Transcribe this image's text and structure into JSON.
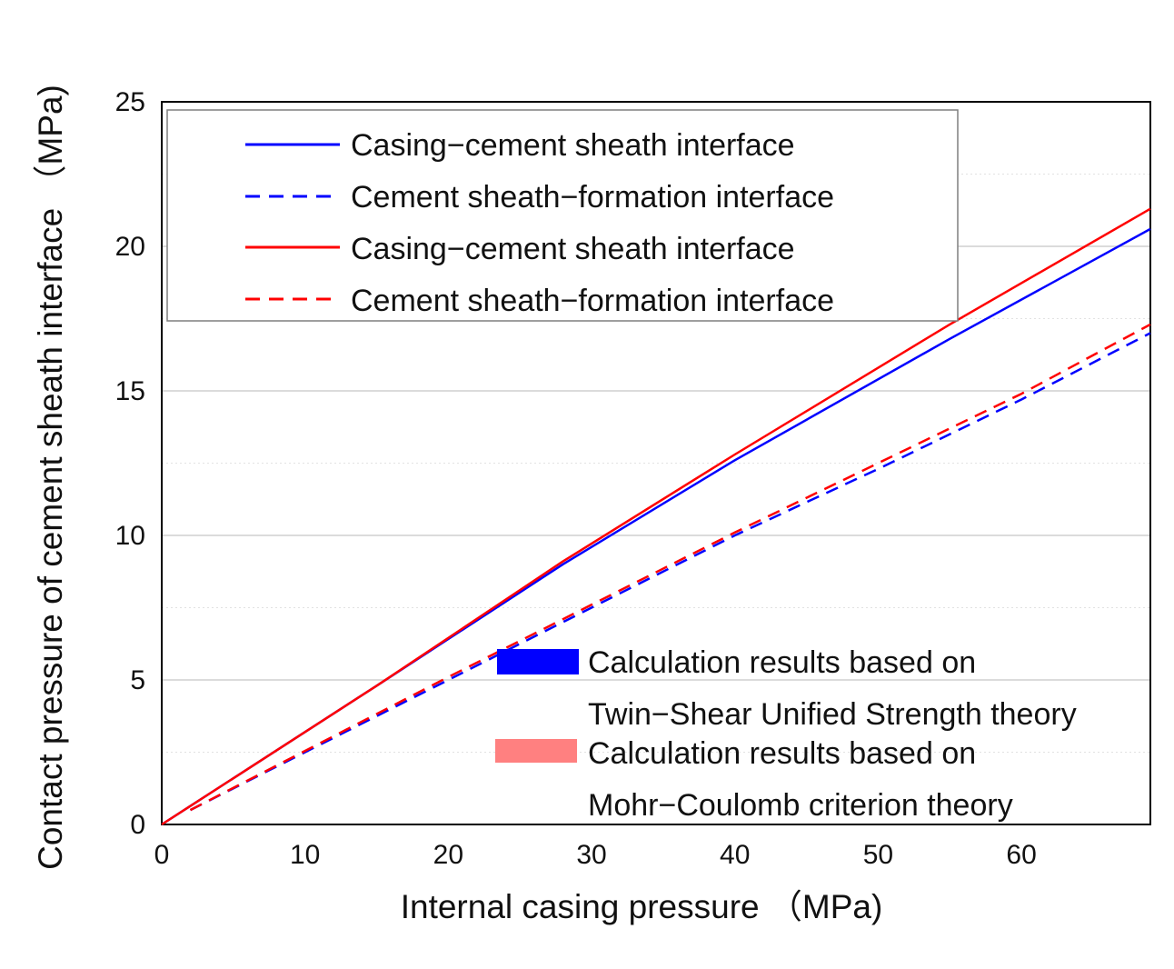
{
  "chart_data": {
    "type": "line",
    "title": "",
    "xlabel": "Internal casing pressure （MPa)",
    "ylabel": "Contact pressure of cement sheath interface （MPa)",
    "xlim": [
      0,
      69
    ],
    "ylim": [
      0,
      25
    ],
    "xticks": [
      0,
      10,
      20,
      30,
      40,
      50,
      60
    ],
    "yticks": [
      0,
      5,
      10,
      15,
      20,
      25
    ],
    "grid": true,
    "series": [
      {
        "name": "Casing−cement sheath interface",
        "group": "Twin-Shear Unified Strength theory",
        "color": "#0000ff",
        "dash": "solid",
        "x": [
          0,
          15,
          28,
          40,
          55,
          69
        ],
        "y": [
          0,
          4.8,
          9.0,
          12.6,
          16.8,
          20.6
        ]
      },
      {
        "name": "Cement sheath−formation interface",
        "group": "Twin-Shear Unified Strength theory",
        "color": "#0000ff",
        "dash": "dashed",
        "x": [
          2,
          20,
          30,
          40,
          50,
          60,
          69
        ],
        "y": [
          0.5,
          5.0,
          7.5,
          10.0,
          12.3,
          14.7,
          17.0
        ]
      },
      {
        "name": "Casing−cement sheath interface",
        "group": "Mohr-Coulomb criterion theory",
        "color": "#ff0000",
        "dash": "solid",
        "x": [
          0,
          15,
          28,
          40,
          55,
          69
        ],
        "y": [
          0,
          4.8,
          9.1,
          12.8,
          17.3,
          21.3
        ]
      },
      {
        "name": "Cement sheath−formation interface",
        "group": "Mohr-Coulomb criterion theory",
        "color": "#ff0000",
        "dash": "dashed",
        "x": [
          2,
          20,
          30,
          40,
          50,
          60,
          69
        ],
        "y": [
          0.5,
          5.1,
          7.6,
          10.1,
          12.5,
          14.9,
          17.3
        ]
      }
    ],
    "legend": {
      "placement": "top-left",
      "entries": [
        {
          "label": "Casing−cement sheath interface",
          "color": "#0000ff",
          "dash": "solid"
        },
        {
          "label": "Cement sheath−formation interface",
          "color": "#0000ff",
          "dash": "dashed"
        },
        {
          "label": "Casing−cement sheath interface",
          "color": "#ff0000",
          "dash": "solid"
        },
        {
          "label": "Cement sheath−formation interface",
          "color": "#ff0000",
          "dash": "dashed"
        }
      ]
    },
    "theory_legend": {
      "placement": "bottom-right",
      "entries": [
        {
          "line1": "Calculation results based on",
          "line2": "Twin−Shear Unified Strength theory",
          "color": "#0000ff"
        },
        {
          "line1": "Calculation results based on",
          "line2": "Mohr−Coulomb criterion theory",
          "color": "#ff8080"
        }
      ]
    }
  }
}
